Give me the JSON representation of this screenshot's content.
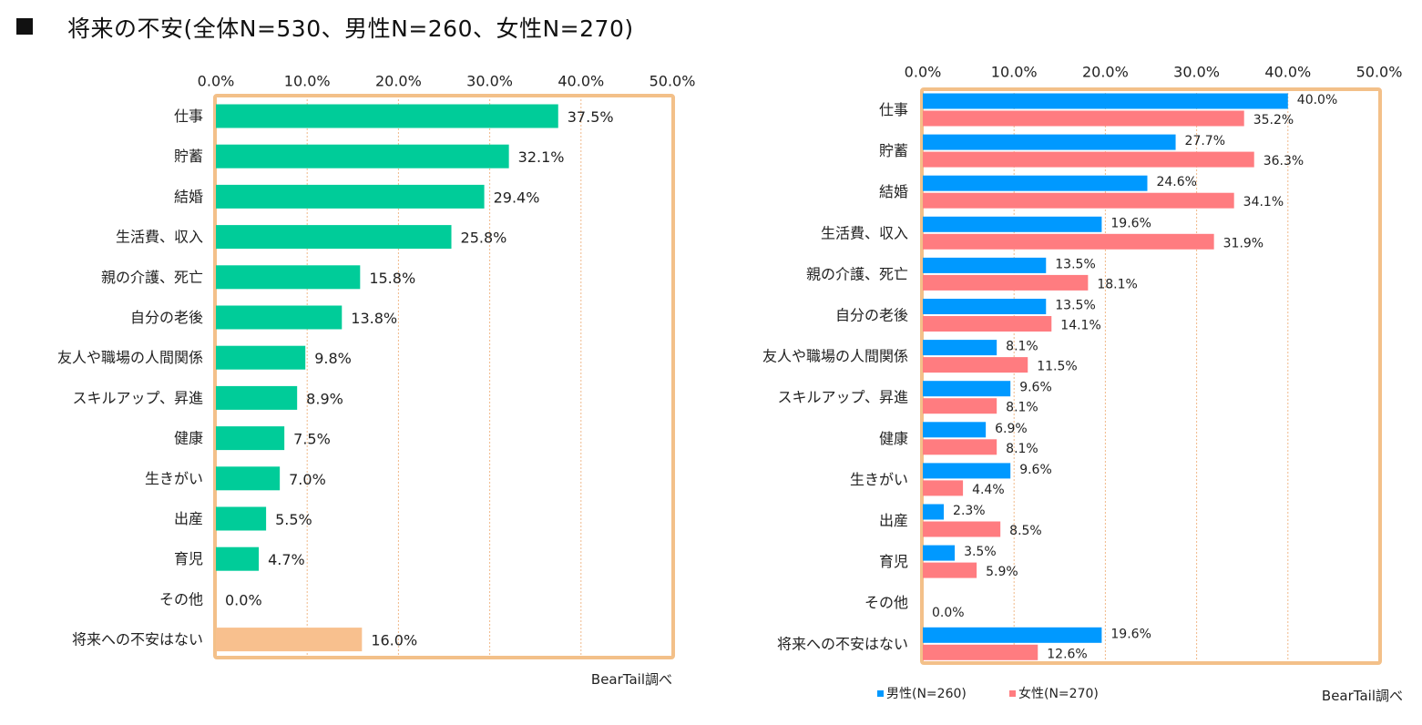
{
  "page": {
    "title": "将来の不安(全体N=530、男性N=260、女性N=270)"
  },
  "chart_data": [
    {
      "type": "bar",
      "orientation": "horizontal",
      "title": "",
      "xlim": [
        0,
        50
      ],
      "x_ticks": [
        "0.0%",
        "10.0%",
        "20.0%",
        "30.0%",
        "40.0%",
        "50.0%"
      ],
      "grid": true,
      "categories": [
        "仕事",
        "貯蓄",
        "結婚",
        "生活費、収入",
        "親の介護、死亡",
        "自分の老後",
        "友人や職場の人間関係",
        "スキルアップ、昇進",
        "健康",
        "生きがい",
        "出産",
        "育児",
        "その他",
        "将来への不安はない"
      ],
      "values": [
        37.5,
        32.1,
        29.4,
        25.8,
        15.8,
        13.8,
        9.8,
        8.9,
        7.5,
        7.0,
        5.5,
        4.7,
        0.0,
        16.0
      ],
      "value_labels": [
        "37.5%",
        "32.1%",
        "29.4%",
        "25.8%",
        "15.8%",
        "13.8%",
        "9.8%",
        "8.9%",
        "7.5%",
        "7.0%",
        "5.5%",
        "4.7%",
        "0.0%",
        "16.0%"
      ],
      "colors": {
        "bar": "#00cc99",
        "highlight_last": "#f8c08e",
        "frame": "#f3c089",
        "grid": "#f1b889"
      },
      "source": "BearTail調べ"
    },
    {
      "type": "bar",
      "orientation": "horizontal",
      "title": "",
      "xlim": [
        0,
        50
      ],
      "x_ticks": [
        "0.0%",
        "10.0%",
        "20.0%",
        "30.0%",
        "40.0%",
        "50.0%"
      ],
      "grid": true,
      "legend_position": "bottom-left",
      "categories": [
        "仕事",
        "貯蓄",
        "結婚",
        "生活費、収入",
        "親の介護、死亡",
        "自分の老後",
        "友人や職場の人間関係",
        "スキルアップ、昇進",
        "健康",
        "生きがい",
        "出産",
        "育児",
        "その他",
        "将来への不安はない"
      ],
      "series": [
        {
          "name": "男性(N=260)",
          "color": "#0099ff",
          "values": [
            40.0,
            27.7,
            24.6,
            19.6,
            13.5,
            13.5,
            8.1,
            9.6,
            6.9,
            9.6,
            2.3,
            3.5,
            0.0,
            19.6
          ],
          "value_labels": [
            "40.0%",
            "27.7%",
            "24.6%",
            "19.6%",
            "13.5%",
            "13.5%",
            "8.1%",
            "9.6%",
            "6.9%",
            "9.6%",
            "2.3%",
            "3.5%",
            "",
            "19.6%"
          ]
        },
        {
          "name": "女性(N=270)",
          "color": "#ff7c80",
          "values": [
            35.2,
            36.3,
            34.1,
            31.9,
            18.1,
            14.1,
            11.5,
            8.1,
            8.1,
            4.4,
            8.5,
            5.9,
            0.0,
            12.6
          ],
          "value_labels": [
            "35.2%",
            "36.3%",
            "34.1%",
            "31.9%",
            "18.1%",
            "14.1%",
            "11.5%",
            "8.1%",
            "8.1%",
            "4.4%",
            "8.5%",
            "5.9%",
            "0.0%",
            "12.6%"
          ]
        }
      ],
      "colors": {
        "frame": "#f3c089",
        "grid": "#f1b889"
      },
      "source": "BearTail調べ"
    }
  ]
}
